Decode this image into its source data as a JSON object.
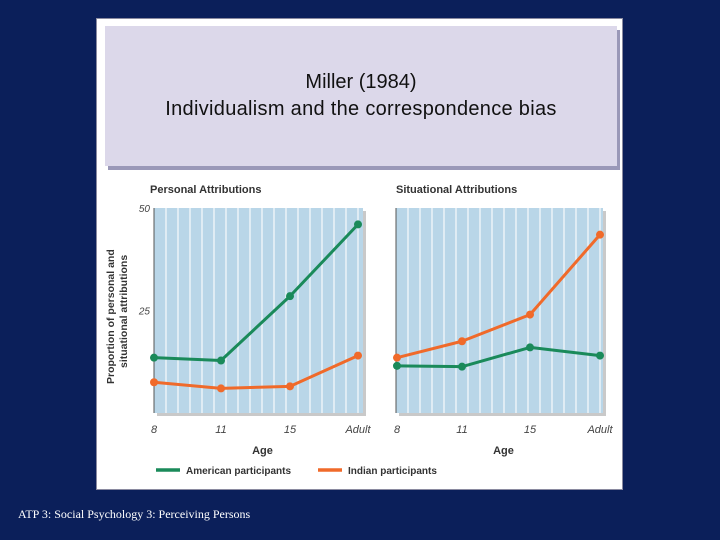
{
  "header": {
    "title_line1": "Miller (1984)",
    "title_line2": "Individualism and the correspondence bias"
  },
  "footer": {
    "text": "ATP 3: Social Psychology 3: Perceiving Persons"
  },
  "colors": {
    "american": "#1a8a5a",
    "indian": "#f06a2a",
    "plot_bg": "#b9d6e8",
    "grid": "#ffffff",
    "background": "#0b1f5a"
  },
  "chart_data": [
    {
      "type": "line",
      "title": "Personal Attributions",
      "xlabel": "Age",
      "ylabel": "Proportion of personal and situational attributions",
      "categories": [
        "8",
        "11",
        "15",
        "Adult"
      ],
      "ylim": [
        0,
        50
      ],
      "yticks": [
        "50",
        "25"
      ],
      "series": [
        {
          "name": "American participants",
          "values": [
            13.5,
            12.8,
            28.5,
            46
          ]
        },
        {
          "name": "Indian participants",
          "values": [
            7.5,
            6,
            6.5,
            14
          ]
        }
      ]
    },
    {
      "type": "line",
      "title": "Situational Attributions",
      "xlabel": "Age",
      "categories": [
        "8",
        "11",
        "15",
        "Adult"
      ],
      "ylim": [
        0,
        50
      ],
      "series": [
        {
          "name": "American participants",
          "values": [
            11.5,
            11.3,
            16,
            14
          ]
        },
        {
          "name": "Indian participants",
          "values": [
            13.5,
            17.5,
            24,
            43.5
          ]
        }
      ]
    }
  ]
}
